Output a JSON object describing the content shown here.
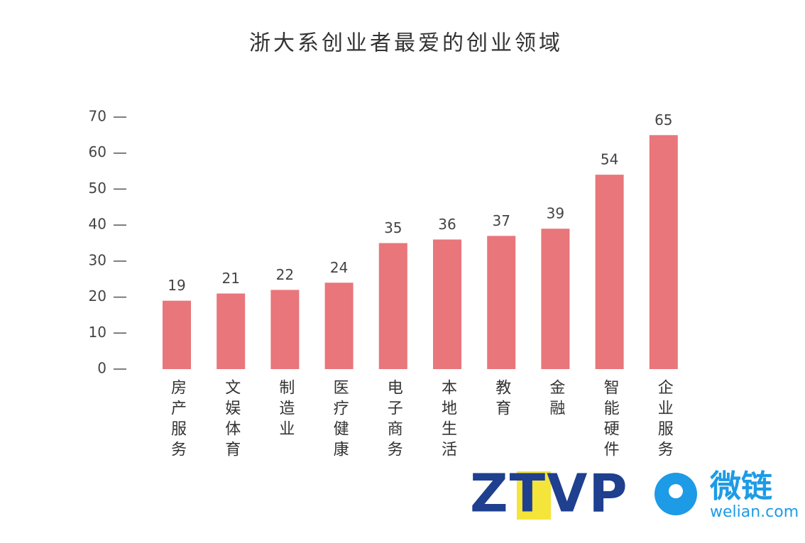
{
  "chart_data": {
    "type": "bar",
    "title": "浙大系创业者最爱的创业领域",
    "categories": [
      "房产服务",
      "文娱体育",
      "制造业",
      "医疗健康",
      "电子商务",
      "本地生活",
      "教育",
      "金融",
      "智能硬件",
      "企业服务"
    ],
    "values": [
      19,
      21,
      22,
      24,
      35,
      36,
      37,
      39,
      54,
      65
    ],
    "color": "#e8767a",
    "ylim": [
      0,
      70
    ],
    "yticks": [
      0,
      10,
      20,
      30,
      40,
      50,
      60,
      70
    ],
    "grid": false
  },
  "logos": {
    "ztvp": "ZTVP",
    "welian": "微链",
    "welian_url": "welian.com"
  }
}
